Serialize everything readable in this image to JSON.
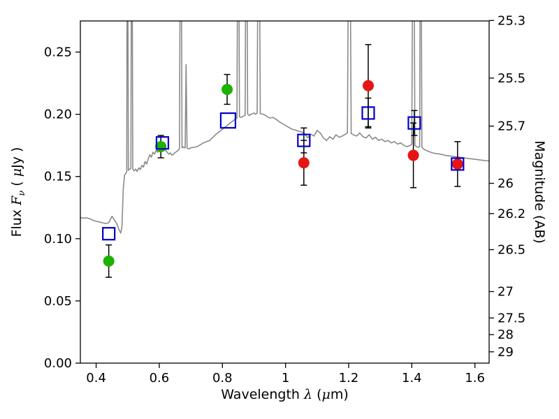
{
  "figure": {
    "background": "#ffffff"
  },
  "labels": {
    "xlabel_word": "Wavelength ",
    "xlabel_lambda": "λ",
    "xlabel_open": " (",
    "xlabel_mu": "μ",
    "xlabel_close": "m)",
    "ylabel_left_word": "Flux ",
    "ylabel_left_F": "F",
    "ylabel_left_nu": "ν",
    "ylabel_left_open": " ( ",
    "ylabel_left_mu": "μ",
    "ylabel_left_unit": "Jy )",
    "ylabel_right": "Magnitude (AB)"
  },
  "chart_data": {
    "type": "line+scatter",
    "title": "",
    "xlabel": "Wavelength λ (μm)",
    "ylabel_left": "Flux Fν ( μJy )",
    "ylabel_right": "Magnitude (AB)",
    "xlim": [
      0.35,
      1.645
    ],
    "ylim": [
      0.0,
      0.275
    ],
    "grid": false,
    "legend": false,
    "x_ticks": [
      0.4,
      0.6,
      0.8,
      1.0,
      1.2,
      1.4,
      1.6
    ],
    "x_tick_labels": [
      "0.4",
      "0.6",
      "0.8",
      "1",
      "1.2",
      "1.4",
      "1.6"
    ],
    "y_ticks_left": [
      0.0,
      0.05,
      0.1,
      0.15,
      0.2,
      0.25
    ],
    "y_tick_labels_left": [
      "0.00",
      "0.05",
      "0.10",
      "0.15",
      "0.20",
      "0.25"
    ],
    "right_axis": {
      "tick_labels": [
        "25.3",
        "25.5",
        "25.7",
        "26",
        "26.2",
        "26.5",
        "27",
        "27.5",
        "28",
        "29"
      ],
      "tick_flux_positions": [
        0.2754,
        0.2291,
        0.1905,
        0.1445,
        0.1202,
        0.0912,
        0.0575,
        0.0363,
        0.0229,
        0.0091
      ],
      "ab_zeropoint_ujy": 23.9
    },
    "layout": {
      "plot_left": 115,
      "plot_top": 30,
      "plot_right": 700,
      "plot_bottom": 520,
      "tick_len": 7
    },
    "colors": {
      "spectrum": "#8a8a8a",
      "green": "#1cb200",
      "red": "#e81414",
      "blue": "#0000cc",
      "axis": "#000000",
      "errorbar": "#000000"
    },
    "series": [
      {
        "name": "model-spectrum",
        "type": "line",
        "color_key": "spectrum",
        "stroke_width": 1.6,
        "points": [
          [
            0.35,
            0.117
          ],
          [
            0.36,
            0.1165
          ],
          [
            0.37,
            0.1168
          ],
          [
            0.38,
            0.116
          ],
          [
            0.39,
            0.1148
          ],
          [
            0.4,
            0.114
          ],
          [
            0.41,
            0.1135
          ],
          [
            0.42,
            0.1128
          ],
          [
            0.43,
            0.1122
          ],
          [
            0.44,
            0.1128
          ],
          [
            0.45,
            0.118
          ],
          [
            0.458,
            0.115
          ],
          [
            0.466,
            0.1118
          ],
          [
            0.472,
            0.1075
          ],
          [
            0.478,
            0.1045
          ],
          [
            0.482,
            0.11
          ],
          [
            0.486,
            0.14
          ],
          [
            0.49,
            0.151
          ],
          [
            0.494,
            0.1525
          ],
          [
            0.497,
            0.154
          ],
          [
            0.499,
            0.45
          ],
          [
            0.502,
            0.155
          ],
          [
            0.506,
            0.1558
          ],
          [
            0.51,
            0.1565
          ],
          [
            0.513,
            0.45
          ],
          [
            0.516,
            0.156
          ],
          [
            0.52,
            0.1545
          ],
          [
            0.525,
            0.156
          ],
          [
            0.53,
            0.154
          ],
          [
            0.535,
            0.157
          ],
          [
            0.54,
            0.1555
          ],
          [
            0.545,
            0.159
          ],
          [
            0.55,
            0.1575
          ],
          [
            0.555,
            0.162
          ],
          [
            0.56,
            0.16
          ],
          [
            0.565,
            0.164
          ],
          [
            0.57,
            0.1675
          ],
          [
            0.575,
            0.1655
          ],
          [
            0.58,
            0.1695
          ],
          [
            0.585,
            0.168
          ],
          [
            0.59,
            0.171
          ],
          [
            0.595,
            0.1695
          ],
          [
            0.6,
            0.1715
          ],
          [
            0.605,
            0.173
          ],
          [
            0.61,
            0.174
          ],
          [
            0.615,
            0.1725
          ],
          [
            0.62,
            0.171
          ],
          [
            0.625,
            0.1695
          ],
          [
            0.63,
            0.168
          ],
          [
            0.635,
            0.169
          ],
          [
            0.64,
            0.1672
          ],
          [
            0.645,
            0.168
          ],
          [
            0.65,
            0.1692
          ],
          [
            0.655,
            0.17
          ],
          [
            0.66,
            0.1712
          ],
          [
            0.664,
            0.1722
          ],
          [
            0.668,
            0.45
          ],
          [
            0.672,
            0.173
          ],
          [
            0.676,
            0.1738
          ],
          [
            0.68,
            0.173
          ],
          [
            0.682,
            0.1732
          ],
          [
            0.685,
            0.24
          ],
          [
            0.688,
            0.1728
          ],
          [
            0.695,
            0.1722
          ],
          [
            0.7,
            0.173
          ],
          [
            0.71,
            0.1735
          ],
          [
            0.72,
            0.174
          ],
          [
            0.73,
            0.1755
          ],
          [
            0.74,
            0.177
          ],
          [
            0.75,
            0.178
          ],
          [
            0.76,
            0.179
          ],
          [
            0.77,
            0.1815
          ],
          [
            0.78,
            0.184
          ],
          [
            0.79,
            0.186
          ],
          [
            0.8,
            0.188
          ],
          [
            0.81,
            0.19
          ],
          [
            0.82,
            0.192
          ],
          [
            0.83,
            0.194
          ],
          [
            0.84,
            0.196
          ],
          [
            0.846,
            0.197
          ],
          [
            0.85,
            0.45
          ],
          [
            0.854,
            0.198
          ],
          [
            0.86,
            0.1975
          ],
          [
            0.866,
            0.1985
          ],
          [
            0.872,
            0.199
          ],
          [
            0.876,
            0.45
          ],
          [
            0.88,
            0.2
          ],
          [
            0.886,
            0.199
          ],
          [
            0.89,
            0.2
          ],
          [
            0.896,
            0.2005
          ],
          [
            0.9,
            0.201
          ],
          [
            0.905,
            0.2
          ],
          [
            0.91,
            0.201
          ],
          [
            0.915,
            0.45
          ],
          [
            0.92,
            0.2005
          ],
          [
            0.93,
            0.2
          ],
          [
            0.94,
            0.1985
          ],
          [
            0.95,
            0.197
          ],
          [
            0.96,
            0.1975
          ],
          [
            0.97,
            0.196
          ],
          [
            0.98,
            0.194
          ],
          [
            0.99,
            0.1925
          ],
          [
            1.0,
            0.191
          ],
          [
            1.01,
            0.1895
          ],
          [
            1.02,
            0.188
          ],
          [
            1.03,
            0.1875
          ],
          [
            1.04,
            0.1865
          ],
          [
            1.05,
            0.186
          ],
          [
            1.06,
            0.1845
          ],
          [
            1.07,
            0.181
          ],
          [
            1.08,
            0.184
          ],
          [
            1.09,
            0.1825
          ],
          [
            1.1,
            0.187
          ],
          [
            1.11,
            0.185
          ],
          [
            1.12,
            0.181
          ],
          [
            1.13,
            0.179
          ],
          [
            1.14,
            0.182
          ],
          [
            1.15,
            0.18
          ],
          [
            1.16,
            0.1835
          ],
          [
            1.17,
            0.1815
          ],
          [
            1.18,
            0.1825
          ],
          [
            1.19,
            0.184
          ],
          [
            1.196,
            0.185
          ],
          [
            1.202,
            0.45
          ],
          [
            1.208,
            0.1845
          ],
          [
            1.215,
            0.1835
          ],
          [
            1.225,
            0.1825
          ],
          [
            1.235,
            0.185
          ],
          [
            1.245,
            0.182
          ],
          [
            1.255,
            0.181
          ],
          [
            1.265,
            0.1835
          ],
          [
            1.275,
            0.18
          ],
          [
            1.285,
            0.1815
          ],
          [
            1.295,
            0.179
          ],
          [
            1.305,
            0.18
          ],
          [
            1.315,
            0.178
          ],
          [
            1.325,
            0.179
          ],
          [
            1.335,
            0.177
          ],
          [
            1.345,
            0.178
          ],
          [
            1.355,
            0.176
          ],
          [
            1.365,
            0.177
          ],
          [
            1.375,
            0.175
          ],
          [
            1.385,
            0.174
          ],
          [
            1.395,
            0.175
          ],
          [
            1.4,
            0.176
          ],
          [
            1.405,
            0.45
          ],
          [
            1.41,
            0.175
          ],
          [
            1.415,
            0.174
          ],
          [
            1.42,
            0.1735
          ],
          [
            1.425,
            0.174
          ],
          [
            1.428,
            0.45
          ],
          [
            1.432,
            0.1735
          ],
          [
            1.438,
            0.172
          ],
          [
            1.445,
            0.171
          ],
          [
            1.455,
            0.17
          ],
          [
            1.465,
            0.169
          ],
          [
            1.475,
            0.1685
          ],
          [
            1.49,
            0.168
          ],
          [
            1.505,
            0.167
          ],
          [
            1.52,
            0.1665
          ],
          [
            1.535,
            0.166
          ],
          [
            1.55,
            0.1655
          ],
          [
            1.565,
            0.165
          ],
          [
            1.58,
            0.1645
          ],
          [
            1.595,
            0.164
          ],
          [
            1.61,
            0.1635
          ],
          [
            1.625,
            0.163
          ],
          [
            1.645,
            0.1625
          ]
        ]
      },
      {
        "name": "photometry-green-circles",
        "type": "scatter",
        "marker": "filled-circle",
        "color_key": "green",
        "marker_radius": 8,
        "points": [
          {
            "x": 0.44,
            "y": 0.082,
            "err": 0.013
          },
          {
            "x": 0.605,
            "y": 0.174,
            "err": 0.009
          },
          {
            "x": 0.815,
            "y": 0.22,
            "err": 0.012
          }
        ]
      },
      {
        "name": "photometry-red-circles",
        "type": "scatter",
        "marker": "filled-circle",
        "color_key": "red",
        "marker_radius": 8,
        "points": [
          {
            "x": 1.058,
            "y": 0.161,
            "err": 0.018
          },
          {
            "x": 1.262,
            "y": 0.223,
            "err": 0.033
          },
          {
            "x": 1.405,
            "y": 0.167,
            "err": 0.026
          },
          {
            "x": 1.545,
            "y": 0.16,
            "err": 0.018
          }
        ]
      },
      {
        "name": "model-photometry-blue-squares",
        "type": "scatter",
        "marker": "open-square",
        "color_key": "blue",
        "marker_size": 17,
        "points": [
          {
            "x": 0.44,
            "y": 0.104
          },
          {
            "x": 0.61,
            "y": 0.177
          },
          {
            "x": 0.818,
            "y": 0.195,
            "s": 21
          },
          {
            "x": 1.058,
            "y": 0.179,
            "err": 0.01
          },
          {
            "x": 1.262,
            "y": 0.201,
            "err": 0.012
          },
          {
            "x": 1.408,
            "y": 0.193,
            "err": 0.01
          },
          {
            "x": 1.545,
            "y": 0.16
          }
        ]
      }
    ]
  }
}
